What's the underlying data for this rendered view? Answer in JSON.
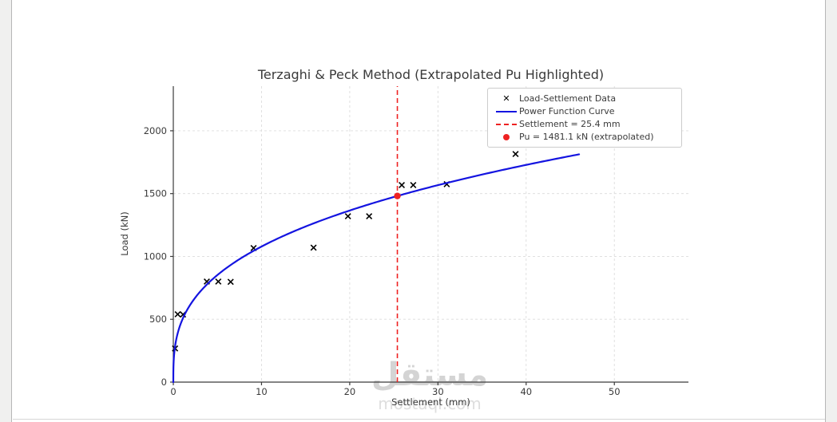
{
  "window": {
    "background": "#f0f0ef",
    "page_background": "#ffffff",
    "edge_border_color": "#b7b7b7"
  },
  "watermark": {
    "arabic": "مستقل",
    "latin": "mostaql.com"
  },
  "chart_data": {
    "type": "scatter",
    "title": "Terzaghi & Peck Method (Extrapolated Pu Highlighted)",
    "xlabel": "Settlement (mm)",
    "ylabel": "Load (kN)",
    "xlim": [
      0,
      58.4
    ],
    "ylim": [
      0,
      2355
    ],
    "xticks": [
      0,
      10,
      20,
      30,
      40,
      50
    ],
    "yticks": [
      0,
      500,
      1000,
      1500,
      2000
    ],
    "grid": true,
    "legend_position": "upper right",
    "legend": [
      {
        "glyph": "x-marker",
        "label": "Load-Settlement Data"
      },
      {
        "glyph": "blue-line",
        "label": "Power Function Curve"
      },
      {
        "glyph": "red-dashed-line",
        "label": "Settlement = 25.4 mm"
      },
      {
        "glyph": "red-dot",
        "label": "Pu = 1481.1 kN (extrapolated)"
      }
    ],
    "series": [
      {
        "name": "Load-Settlement Data",
        "type": "scatter",
        "marker": "x",
        "color": "#000000",
        "points": [
          [
            0.2,
            268
          ],
          [
            0.5,
            540
          ],
          [
            1.1,
            538
          ],
          [
            3.8,
            800
          ],
          [
            5.1,
            800
          ],
          [
            6.5,
            798
          ],
          [
            9.1,
            1067
          ],
          [
            15.9,
            1070
          ],
          [
            19.8,
            1320
          ],
          [
            22.2,
            1320
          ],
          [
            25.9,
            1568
          ],
          [
            27.2,
            1568
          ],
          [
            31.0,
            1575
          ],
          [
            38.8,
            1815
          ]
        ]
      },
      {
        "name": "Power Function Curve",
        "type": "power_curve",
        "color": "#1414e0",
        "a": 493.1,
        "b": 0.34,
        "s_range": [
          0,
          46
        ]
      },
      {
        "name": "Settlement = 25.4 mm",
        "type": "vline",
        "x": 25.4,
        "color": "#ee2222",
        "linestyle": "dashed"
      },
      {
        "name": "Pu = 1481.1 kN (extrapolated)",
        "type": "point",
        "x": 25.4,
        "y": 1481.1,
        "color": "#ee2222"
      }
    ],
    "colors": {
      "grid": "#dcdcdc",
      "spine": "#3b3b3b",
      "text": "#3a3a3a"
    }
  }
}
